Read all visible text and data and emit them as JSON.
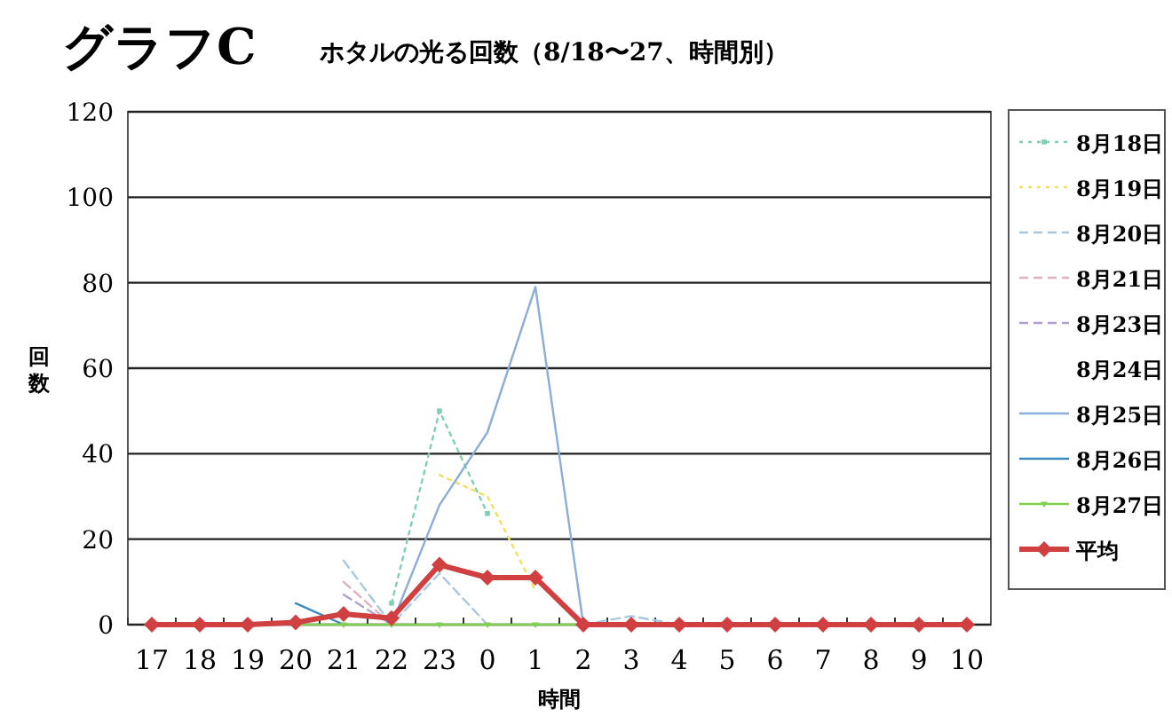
{
  "chart_data": {
    "type": "line",
    "title": "グラフC",
    "subtitle": "ホタルの光る回数（8/18〜27、時間別）",
    "xlabel": "時間",
    "ylabel": "回数",
    "categories": [
      "17",
      "18",
      "19",
      "20",
      "21",
      "22",
      "23",
      "0",
      "1",
      "2",
      "3",
      "4",
      "5",
      "6",
      "7",
      "8",
      "9",
      "10"
    ],
    "ylim": [
      0,
      120
    ],
    "yticks": [
      0,
      20,
      40,
      60,
      80,
      100,
      120
    ],
    "grid": "y",
    "legend": "right",
    "series": [
      {
        "name": "8月18日",
        "color": "#7fd0b0",
        "line_style": "dotted",
        "marker": "square",
        "values": [
          null,
          null,
          null,
          null,
          null,
          5,
          50,
          26,
          null,
          null,
          null,
          null,
          null,
          null,
          null,
          null,
          null,
          null
        ]
      },
      {
        "name": "8月19日",
        "color": "#f0e060",
        "line_style": "dotted",
        "values": [
          null,
          null,
          null,
          null,
          null,
          null,
          35,
          30,
          8,
          null,
          null,
          null,
          null,
          null,
          null,
          null,
          null,
          null
        ]
      },
      {
        "name": "8月20日",
        "color": "#a8c8e0",
        "line_style": "dashed",
        "values": [
          null,
          null,
          null,
          null,
          15,
          0,
          12,
          0,
          null,
          0,
          2,
          0,
          null,
          null,
          null,
          null,
          null,
          null
        ]
      },
      {
        "name": "8月21日",
        "color": "#e0b0c0",
        "line_style": "dashed",
        "values": [
          null,
          null,
          null,
          null,
          10,
          0,
          null,
          null,
          null,
          null,
          null,
          null,
          null,
          null,
          null,
          null,
          null,
          null
        ]
      },
      {
        "name": "8月23日",
        "color": "#b0a0d0",
        "line_style": "dashed",
        "values": [
          null,
          null,
          null,
          null,
          7,
          0,
          null,
          null,
          null,
          null,
          null,
          null,
          null,
          null,
          null,
          null,
          null,
          null
        ]
      },
      {
        "name": "8月24日",
        "values": [
          null,
          null,
          null,
          null,
          null,
          null,
          null,
          null,
          null,
          null,
          null,
          null,
          null,
          null,
          null,
          null,
          null,
          null
        ]
      },
      {
        "name": "8月25日",
        "color": "#8aaed8",
        "line_style": "solid",
        "values": [
          null,
          null,
          null,
          null,
          null,
          0,
          28,
          45,
          79,
          0,
          null,
          null,
          null,
          null,
          null,
          null,
          null,
          null
        ]
      },
      {
        "name": "8月26日",
        "color": "#3a8ac0",
        "line_style": "solid",
        "values": [
          null,
          null,
          null,
          5,
          0,
          null,
          null,
          null,
          null,
          null,
          null,
          null,
          null,
          null,
          null,
          null,
          null,
          null
        ]
      },
      {
        "name": "8月27日",
        "color": "#80d050",
        "line_style": "solid",
        "marker": "triangle",
        "values": [
          null,
          null,
          null,
          0,
          0,
          0,
          0,
          0,
          0,
          0,
          null,
          null,
          null,
          null,
          null,
          null,
          null,
          null
        ]
      },
      {
        "name": "平均",
        "color": "#d04040",
        "line_style": "solid",
        "marker": "diamond",
        "values": [
          0,
          0,
          0,
          0.5,
          2.5,
          1.5,
          14,
          11,
          11,
          0,
          0,
          0,
          0,
          0,
          0,
          0,
          0,
          0
        ]
      }
    ]
  }
}
